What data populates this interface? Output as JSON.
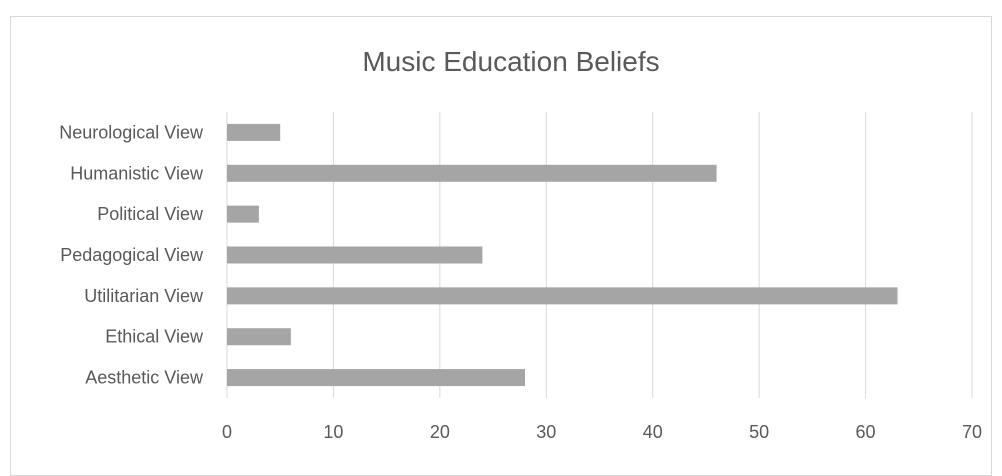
{
  "chart_data": {
    "type": "bar",
    "orientation": "horizontal",
    "title": "Music Education Beliefs",
    "xlabel": "",
    "ylabel": "",
    "categories": [
      "Aesthetic View",
      "Ethical View",
      "Utilitarian View",
      "Pedagogical View",
      "Political View",
      "Humanistic View",
      "Neurological View"
    ],
    "values": [
      28,
      6,
      63,
      24,
      3,
      46,
      5
    ],
    "xlim": [
      0,
      70
    ],
    "xticks": [
      0,
      10,
      20,
      30,
      40,
      50,
      60,
      70
    ],
    "grid": "vertical",
    "legend": "none",
    "bar_color": "#a5a5a5",
    "grid_color": "#d9d9d9",
    "text_color": "#595959"
  }
}
